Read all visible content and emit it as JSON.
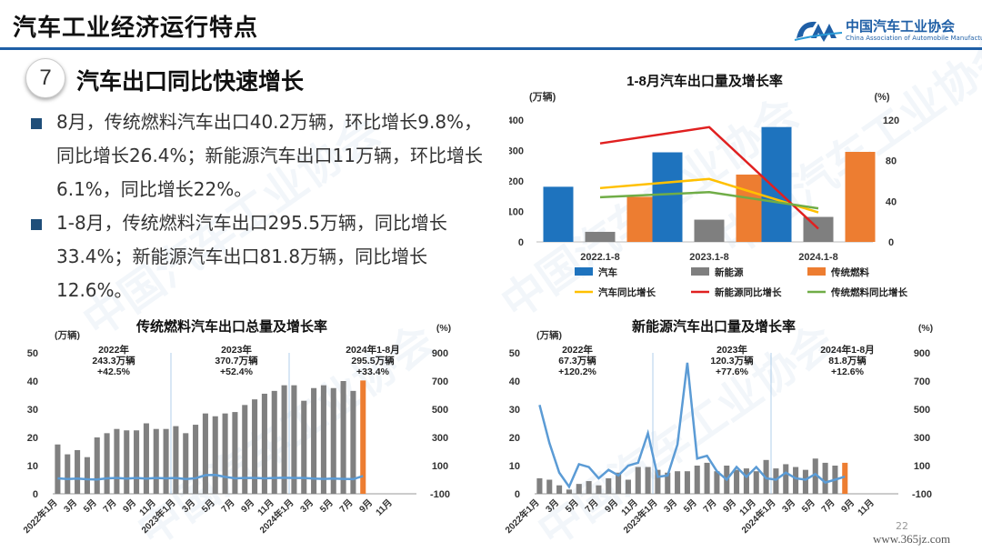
{
  "header": {
    "title": "汽车工业经济运行特点"
  },
  "logo": {
    "mark": "CAM",
    "name_cn": "中国汽车工业协会",
    "name_en": "China Association of Automobile Manufacturers"
  },
  "section": {
    "number": "7",
    "title": "汽车出口同比快速增长"
  },
  "bullets": [
    {
      "text": "8月，传统燃料汽车出口40.2万辆，环比增长9.8%，同比增长26.4%；新能源汽车出口11万辆，环比增长6.1%，同比增长22%。"
    },
    {
      "text": "1-8月，传统燃料汽车出口295.5万辆，同比增长33.4%；新能源汽车出口81.8万辆，同比增长12.6%。"
    }
  ],
  "watermark": "中国汽车工业协会",
  "page_number": "22",
  "site": "www.365jz.com",
  "colors": {
    "blue": "#1e73be",
    "gray": "#7f7f7f",
    "orange": "#ed7d31",
    "yellow": "#ffc000",
    "red": "#e02020",
    "green": "#70ad47",
    "bar_gray": "#808080",
    "line_blue": "#5b9bd5"
  },
  "chart_data": [
    {
      "type": "bar",
      "title": "1-8月汽车出口量及增长率",
      "left_unit": "(万辆)",
      "right_unit": "(%)",
      "categories": [
        "2022.1-8",
        "2023.1-8",
        "2024.1-8"
      ],
      "ylim": [
        0,
        400
      ],
      "yticks": [
        "0",
        "100",
        "200",
        "300",
        "400"
      ],
      "y2lim": [
        0,
        120
      ],
      "y2ticks": [
        "0",
        "40",
        "80",
        "120"
      ],
      "series": [
        {
          "name": "汽车",
          "kind": "bar",
          "axis": "left",
          "color": "#1e73be",
          "values": [
            181,
            294,
            377
          ]
        },
        {
          "name": "新能源",
          "kind": "bar",
          "axis": "left",
          "color": "#7f7f7f",
          "values": [
            33,
            73,
            82
          ]
        },
        {
          "name": "传统燃料",
          "kind": "bar",
          "axis": "left",
          "color": "#ed7d31",
          "values": [
            148,
            221,
            295.5
          ]
        },
        {
          "name": "汽车同比增长",
          "kind": "line",
          "axis": "right",
          "color": "#ffc000",
          "values": [
            53,
            62,
            29
          ]
        },
        {
          "name": "新能源同比增长",
          "kind": "line",
          "axis": "right",
          "color": "#e02020",
          "values": [
            97,
            113,
            13
          ]
        },
        {
          "name": "传统燃料同比增长",
          "kind": "line",
          "axis": "right",
          "color": "#70ad47",
          "values": [
            44,
            49,
            33
          ]
        }
      ],
      "legend": "bottom"
    },
    {
      "type": "bar",
      "title": "传统燃料汽车出口总量及增长率",
      "left_unit": "(万辆)",
      "right_unit": "(%)",
      "ylim": [
        0,
        50
      ],
      "yticks": [
        "0",
        "10",
        "20",
        "30",
        "40",
        "50"
      ],
      "y2lim": [
        -100,
        900
      ],
      "y2ticks": [
        "-100",
        "100",
        "300",
        "500",
        "700",
        "900"
      ],
      "x_tick_labels": [
        "2022年1月",
        "3月",
        "5月",
        "7月",
        "9月",
        "11月",
        "2023年1月",
        "3月",
        "5月",
        "7月",
        "9月",
        "11月",
        "2024年1月",
        "3月",
        "5月",
        "7月",
        "9月",
        "11月"
      ],
      "bar_values": [
        17.5,
        14,
        15.5,
        13,
        20,
        21.5,
        23,
        22.5,
        22.5,
        25,
        23,
        23,
        24,
        21.5,
        24.5,
        28.5,
        27.5,
        28.5,
        29,
        31.5,
        33.5,
        35.5,
        36.5,
        38.5,
        38.5,
        33,
        37.5,
        38.5,
        37.5,
        40,
        36.5,
        40.2
      ],
      "bar_color": "#808080",
      "highlight_last_color": "#ed7d31",
      "growth_values": [
        10,
        5,
        8,
        3,
        2,
        10,
        12,
        8,
        12,
        8,
        12,
        10,
        12,
        5,
        10,
        32,
        34,
        20,
        10,
        12,
        12,
        10,
        12,
        14,
        12,
        12,
        8,
        6,
        8,
        6,
        4,
        26.4
      ],
      "line_color": "#5b9bd5",
      "annotations": [
        {
          "year": "2022年",
          "total": "243.3万辆",
          "growth": "+42.5%"
        },
        {
          "year": "2023年",
          "total": "370.7万辆",
          "growth": "+52.4%"
        },
        {
          "year": "2024年1-8月",
          "total": "295.5万辆",
          "growth": "+33.4%"
        }
      ]
    },
    {
      "type": "bar",
      "title": "新能源汽车出口量及增长率",
      "left_unit": "(万辆)",
      "right_unit": "(%)",
      "ylim": [
        0,
        50
      ],
      "yticks": [
        "0",
        "10",
        "20",
        "30",
        "40",
        "50"
      ],
      "y2lim": [
        -100,
        900
      ],
      "y2ticks": [
        "-100",
        "100",
        "300",
        "500",
        "700",
        "900"
      ],
      "x_tick_labels": [
        "2022年1月",
        "3月",
        "5月",
        "7月",
        "9月",
        "11月",
        "2023年1月",
        "3月",
        "5月",
        "7月",
        "9月",
        "11月",
        "2024年1月",
        "3月",
        "5月",
        "7月",
        "9月",
        "11月"
      ],
      "bar_values": [
        5.5,
        5,
        3,
        1.5,
        3.5,
        4.5,
        3,
        5.5,
        7.5,
        5,
        9.5,
        9.5,
        8.5,
        7.5,
        8,
        8,
        10,
        11,
        8,
        10,
        8.5,
        9,
        8,
        12,
        9,
        10.5,
        9.5,
        8.5,
        12.5,
        11,
        10,
        11
      ],
      "bar_color": "#808080",
      "highlight_last_color": "#ed7d31",
      "growth_values": [
        530,
        260,
        50,
        -50,
        110,
        90,
        10,
        70,
        30,
        100,
        120,
        330,
        20,
        30,
        250,
        830,
        150,
        170,
        60,
        0,
        90,
        20,
        90,
        10,
        0,
        50,
        10,
        0,
        40,
        -20,
        0,
        22
      ],
      "line_color": "#5b9bd5",
      "annotations": [
        {
          "year": "2022年",
          "total": "67.3万辆",
          "growth": "+120.2%"
        },
        {
          "year": "2023年",
          "total": "120.3万辆",
          "growth": "+77.6%"
        },
        {
          "year": "2024年1-8月",
          "total": "81.8万辆",
          "growth": "+12.6%"
        }
      ]
    }
  ]
}
